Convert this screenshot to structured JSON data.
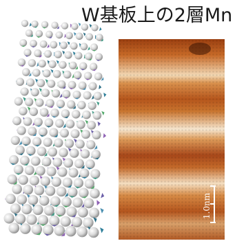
{
  "title": "W基板上の2層Mn",
  "scale_bar": {
    "label": "1.0nm"
  },
  "colors": {
    "stm_dark": "#7a2e08",
    "stm_mid": "#c4631f",
    "stm_light": "#f7ead6",
    "sphere": "#e0e0e0"
  },
  "icons": {
    "spin_model": "spin-spiral-lattice-model",
    "stm_image": "stm-topography-image"
  }
}
